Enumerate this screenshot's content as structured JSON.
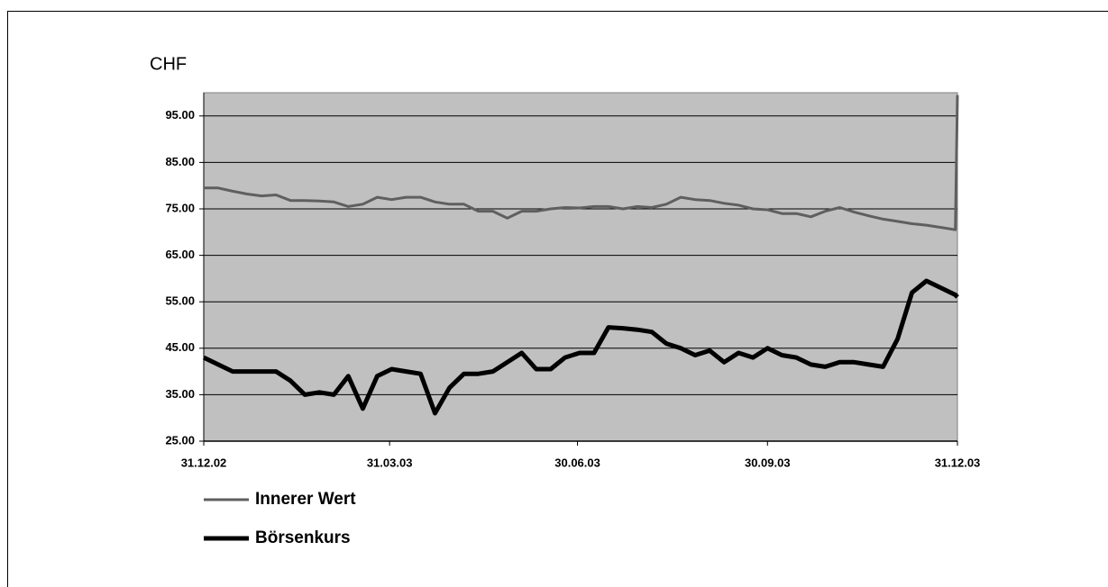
{
  "chart_data": {
    "type": "line",
    "y_label": "CHF",
    "x": [
      "31.12.02",
      "07.01.03",
      "14.01.03",
      "21.01.03",
      "28.01.03",
      "04.02.03",
      "11.02.03",
      "18.02.03",
      "25.02.03",
      "04.03.03",
      "11.03.03",
      "18.03.03",
      "25.03.03",
      "01.04.03",
      "08.04.03",
      "15.04.03",
      "22.04.03",
      "29.04.03",
      "06.05.03",
      "13.05.03",
      "20.05.03",
      "27.05.03",
      "03.06.03",
      "10.06.03",
      "17.06.03",
      "24.06.03",
      "01.07.03",
      "08.07.03",
      "15.07.03",
      "22.07.03",
      "29.07.03",
      "05.08.03",
      "12.08.03",
      "19.08.03",
      "26.08.03",
      "02.09.03",
      "09.09.03",
      "16.09.03",
      "23.09.03",
      "30.09.03",
      "07.10.03",
      "14.10.03",
      "21.10.03",
      "28.10.03",
      "04.11.03",
      "11.11.03",
      "18.11.03",
      "25.11.03",
      "02.12.03",
      "09.12.03",
      "16.12.03",
      "23.12.03",
      "30.12.03",
      "31.12.03"
    ],
    "series": [
      {
        "name": "Innerer Wert",
        "color": "#5f5f5f",
        "values": [
          79.5,
          79.5,
          78.8,
          78.2,
          77.8,
          78,
          76.8,
          76.8,
          76.7,
          76.5,
          75.5,
          76,
          77.5,
          77,
          77.5,
          77.5,
          76.5,
          76,
          76,
          74.5,
          74.5,
          73,
          74.5,
          74.5,
          75,
          75.3,
          75.2,
          75.5,
          75.5,
          75,
          75.5,
          75.3,
          76,
          77.5,
          77,
          76.8,
          76.2,
          75.8,
          75,
          74.8,
          74,
          74,
          73.3,
          74.5,
          75.3,
          74.3,
          73.5,
          72.8,
          72.3,
          71.8,
          71.5,
          71,
          70.5,
          99.5
        ]
      },
      {
        "name": "Börsenkurs",
        "color": "#000000",
        "values": [
          43,
          41.5,
          40,
          40,
          40,
          40,
          38,
          35,
          35.5,
          35,
          39,
          32,
          39,
          40.5,
          40,
          39.5,
          31,
          36.5,
          39.5,
          39.5,
          40,
          42,
          44,
          40.5,
          40.5,
          43,
          44,
          44,
          49.5,
          49.3,
          49,
          48.5,
          46,
          45,
          43.5,
          44.5,
          42,
          44,
          43,
          45,
          43.5,
          43,
          41.5,
          41,
          42,
          42,
          41.5,
          41,
          47,
          57,
          59.5,
          58,
          56.5,
          56
        ]
      }
    ],
    "xlim": [
      "31.12.02",
      "31.12.03"
    ],
    "xticks": [
      "31.12.02",
      "31.03.03",
      "30.06.03",
      "30.09.03",
      "31.12.03"
    ],
    "ylim": [
      25,
      100
    ],
    "yticks": [
      {
        "value": 25,
        "label": "25.00"
      },
      {
        "value": 35,
        "label": "35.00"
      },
      {
        "value": 45,
        "label": "45.00"
      },
      {
        "value": 55,
        "label": "55.00"
      },
      {
        "value": 65,
        "label": "65.00"
      },
      {
        "value": 75,
        "label": "75.00"
      },
      {
        "value": 85,
        "label": "85.00"
      },
      {
        "value": 95,
        "label": "95.00"
      }
    ],
    "grid": true
  }
}
